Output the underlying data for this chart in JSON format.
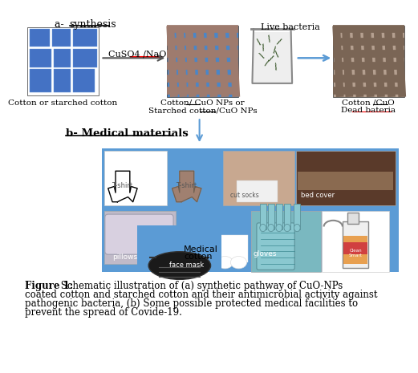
{
  "fig_width": 6.34,
  "fig_height": 5.79,
  "bg_color": "#ffffff",
  "medical_box_color": "#5b9bd5",
  "cotton1_color": "#4472c4",
  "cotton_bg2": "#4a86c8",
  "arrow_color": "#555555",
  "blue_arrow_color": "#5b9bd5",
  "label1": "Cotton or starched cotton",
  "label2_line1": "Cotton/ CuO NPs or",
  "label2_line2": "Starched cotton/CuO NPs",
  "label3_line1": "Cotton /CuO",
  "label3_line2": "Dead bateria",
  "live_bacteria": "Live bacteria",
  "cuso4_text": "CuSO4 /NaOH",
  "caption_bold": "Figure 1:",
  "caption_text": " Schematic illustration of (a) synthetic pathway of CuO-NPs coated cotton and starched cotton and their antimicrobial activity against pathogenic bacteria, (b) Some possible protected medical facilities to prevent the spread of Covide-19."
}
